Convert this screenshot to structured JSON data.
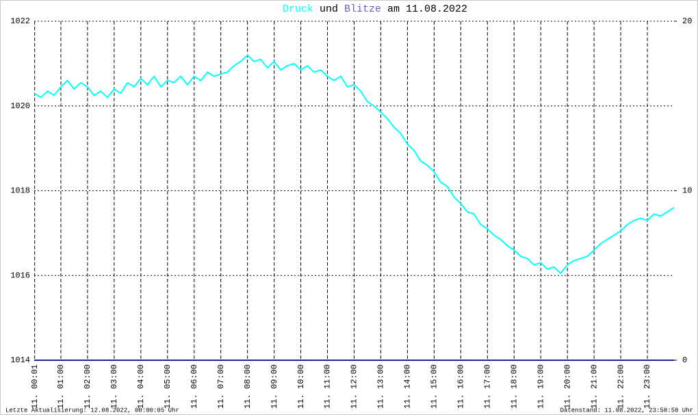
{
  "chart_data": {
    "type": "line",
    "title_join": "und",
    "title_date": "am 11.08.2022",
    "footer_left": "Letzte Aktualisierung: 12.08.2022, 00:00:05 Uhr",
    "footer_right": "Datenstand: 11.08.2022, 23:58:58 Uhr",
    "xlim": [
      0,
      24
    ],
    "xticks": [
      {
        "value": 0.0167,
        "label": "11. 00:01"
      },
      {
        "value": 1,
        "label": "11. 01:00"
      },
      {
        "value": 2,
        "label": "11. 02:00"
      },
      {
        "value": 3,
        "label": "11. 03:00"
      },
      {
        "value": 4,
        "label": "11. 04:00"
      },
      {
        "value": 5,
        "label": "11. 05:00"
      },
      {
        "value": 6,
        "label": "11. 06:00"
      },
      {
        "value": 7,
        "label": "11. 07:00"
      },
      {
        "value": 8,
        "label": "11. 08:00"
      },
      {
        "value": 9,
        "label": "11. 09:00"
      },
      {
        "value": 10,
        "label": "11. 10:00"
      },
      {
        "value": 11,
        "label": "11. 11:00"
      },
      {
        "value": 12,
        "label": "11. 12:00"
      },
      {
        "value": 13,
        "label": "11. 13:00"
      },
      {
        "value": 14,
        "label": "11. 14:00"
      },
      {
        "value": 15,
        "label": "11. 15:00"
      },
      {
        "value": 16,
        "label": "11. 16:00"
      },
      {
        "value": 17,
        "label": "11. 17:00"
      },
      {
        "value": 18,
        "label": "11. 18:00"
      },
      {
        "value": 19,
        "label": "11. 19:00"
      },
      {
        "value": 20,
        "label": "11. 20:00"
      },
      {
        "value": 21,
        "label": "11. 21:00"
      },
      {
        "value": 22,
        "label": "11. 22:00"
      },
      {
        "value": 23,
        "label": "11. 23:00"
      }
    ],
    "ylim": [
      1014,
      1022
    ],
    "yticks": [
      1014,
      1016,
      1018,
      1020,
      1022
    ],
    "y2lim": [
      0,
      20
    ],
    "y2ticks": [
      0,
      10,
      20
    ],
    "grid": true,
    "x": [
      0,
      0.25,
      0.5,
      0.75,
      1,
      1.25,
      1.5,
      1.75,
      2,
      2.25,
      2.5,
      2.75,
      3,
      3.25,
      3.5,
      3.75,
      4,
      4.25,
      4.5,
      4.75,
      5,
      5.25,
      5.5,
      5.75,
      6,
      6.25,
      6.5,
      6.75,
      7,
      7.25,
      7.5,
      7.75,
      8,
      8.25,
      8.5,
      8.75,
      9,
      9.25,
      9.5,
      9.75,
      10,
      10.25,
      10.5,
      10.75,
      11,
      11.25,
      11.5,
      11.75,
      12,
      12.25,
      12.5,
      12.75,
      13,
      13.25,
      13.5,
      13.75,
      14,
      14.25,
      14.5,
      14.75,
      15,
      15.25,
      15.5,
      15.75,
      16,
      16.25,
      16.5,
      16.75,
      17,
      17.25,
      17.5,
      17.75,
      18,
      18.25,
      18.5,
      18.75,
      19,
      19.25,
      19.5,
      19.75,
      20,
      20.25,
      20.5,
      20.75,
      21,
      21.25,
      21.5,
      21.75,
      22,
      22.25,
      22.5,
      22.75,
      23,
      23.25,
      23.5,
      23.75,
      24
    ],
    "series": [
      {
        "name": "Druck",
        "color": "#00ffff",
        "values": [
          1020.3,
          1020.2,
          1020.35,
          1020.25,
          1020.45,
          1020.6,
          1020.4,
          1020.55,
          1020.45,
          1020.25,
          1020.35,
          1020.2,
          1020.4,
          1020.3,
          1020.55,
          1020.45,
          1020.65,
          1020.5,
          1020.7,
          1020.45,
          1020.6,
          1020.55,
          1020.7,
          1020.5,
          1020.7,
          1020.6,
          1020.8,
          1020.7,
          1020.75,
          1020.8,
          1020.95,
          1021.05,
          1021.2,
          1021.05,
          1021.1,
          1020.9,
          1021.05,
          1020.85,
          1020.95,
          1021.0,
          1020.85,
          1020.95,
          1020.8,
          1020.85,
          1020.7,
          1020.6,
          1020.7,
          1020.45,
          1020.5,
          1020.35,
          1020.1,
          1020.0,
          1019.85,
          1019.7,
          1019.5,
          1019.35,
          1019.1,
          1018.95,
          1018.7,
          1018.6,
          1018.45,
          1018.2,
          1018.1,
          1017.85,
          1017.7,
          1017.5,
          1017.45,
          1017.2,
          1017.1,
          1016.95,
          1016.85,
          1016.7,
          1016.6,
          1016.45,
          1016.4,
          1016.25,
          1016.3,
          1016.15,
          1016.2,
          1016.05,
          1016.25,
          1016.35,
          1016.4,
          1016.45,
          1016.6,
          1016.75,
          1016.85,
          1016.95,
          1017.05,
          1017.2,
          1017.3,
          1017.35,
          1017.3,
          1017.45,
          1017.4,
          1017.5,
          1017.6
        ]
      },
      {
        "name": "Blitze",
        "color": "#6a5acd",
        "line_color": "#202090",
        "axis": "y2",
        "x": [
          0,
          24
        ],
        "values": [
          0,
          0
        ]
      }
    ]
  }
}
